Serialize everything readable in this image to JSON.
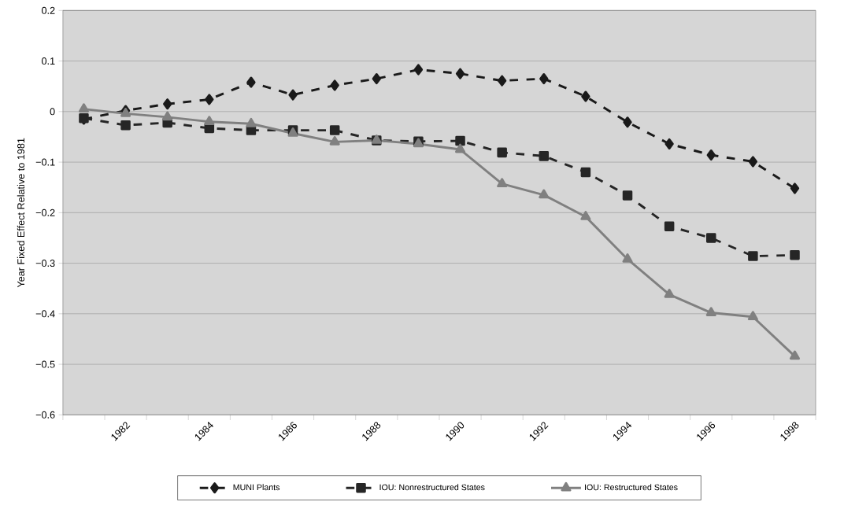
{
  "chart_data": {
    "type": "line",
    "ylabel": "Year Fixed Effect Relative to 1981",
    "categories": [
      null,
      "1982",
      null,
      "1984",
      null,
      "1986",
      null,
      "1988",
      null,
      "1990",
      null,
      "1992",
      null,
      "1994",
      null,
      "1996",
      null,
      "1998"
    ],
    "series": [
      {
        "name": "MUNI Plants",
        "color": "#1a1a1a",
        "marker": "diamond",
        "line_style": "dashed",
        "values": [
          -0.015,
          0.002,
          0.015,
          0.024,
          0.058,
          0.033,
          0.052,
          0.065,
          0.083,
          0.075,
          0.061,
          0.065,
          0.03,
          -0.021,
          -0.064,
          -0.086,
          -0.099,
          -0.152
        ]
      },
      {
        "name": "IOU: Nonrestructured States",
        "color": "#262626",
        "marker": "square",
        "line_style": "dashed",
        "values": [
          -0.013,
          -0.027,
          -0.022,
          -0.033,
          -0.037,
          -0.037,
          -0.037,
          -0.057,
          -0.059,
          -0.058,
          -0.081,
          -0.088,
          -0.12,
          -0.166,
          -0.227,
          -0.25,
          -0.286,
          -0.284
        ]
      },
      {
        "name": "IOU: Restructured States",
        "color": "#808080",
        "marker": "triangle",
        "line_style": "solid",
        "values": [
          0.005,
          -0.004,
          -0.011,
          -0.02,
          -0.024,
          -0.043,
          -0.06,
          -0.057,
          -0.064,
          -0.075,
          -0.143,
          -0.165,
          -0.208,
          -0.292,
          -0.362,
          -0.398,
          -0.406,
          -0.484
        ]
      }
    ],
    "ylim": [
      -0.6,
      0.2
    ],
    "yticks": [
      {
        "value": -0.6,
        "label": "−0.6"
      },
      {
        "value": -0.5,
        "label": "−0.5"
      },
      {
        "value": -0.4,
        "label": "−0.4"
      },
      {
        "value": -0.3,
        "label": "−0.3"
      },
      {
        "value": -0.2,
        "label": "−0.2"
      },
      {
        "value": -0.1,
        "label": "−0.1"
      },
      0,
      0.1,
      0.2
    ],
    "grid": "y",
    "legend": "bottom"
  }
}
